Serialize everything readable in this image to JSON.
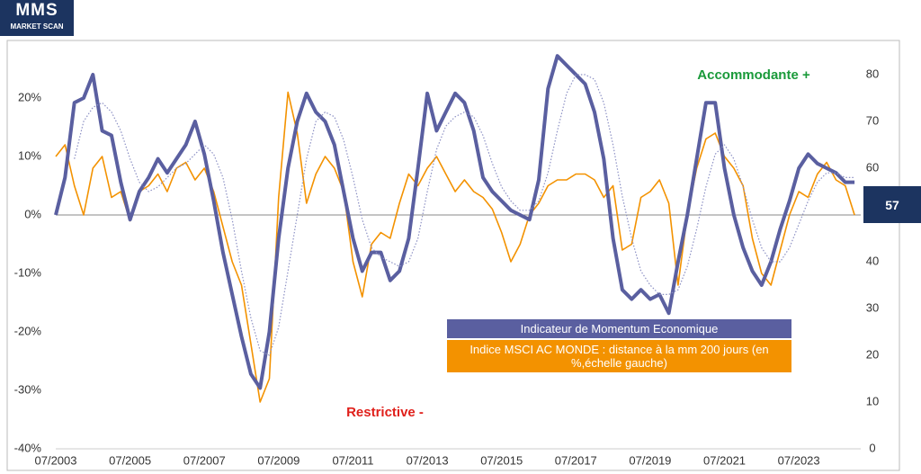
{
  "logo": {
    "title": "MMS",
    "subtitle": "MARKET SCAN"
  },
  "chart_data": {
    "type": "line",
    "annotations": [
      {
        "text": "Accommodante +",
        "color": "#1a9a3a"
      },
      {
        "text": "Restrictive -",
        "color": "#e0201b"
      }
    ],
    "x": [
      "2003-07",
      "2003-10",
      "2004-01",
      "2004-04",
      "2004-07",
      "2004-10",
      "2005-01",
      "2005-04",
      "2005-07",
      "2005-10",
      "2006-01",
      "2006-04",
      "2006-07",
      "2006-10",
      "2007-01",
      "2007-04",
      "2007-07",
      "2007-10",
      "2008-01",
      "2008-04",
      "2008-07",
      "2008-10",
      "2009-01",
      "2009-04",
      "2009-07",
      "2009-10",
      "2010-01",
      "2010-04",
      "2010-07",
      "2010-10",
      "2011-01",
      "2011-04",
      "2011-07",
      "2011-10",
      "2012-01",
      "2012-04",
      "2012-07",
      "2012-10",
      "2013-01",
      "2013-04",
      "2013-07",
      "2013-10",
      "2014-01",
      "2014-04",
      "2014-07",
      "2014-10",
      "2015-01",
      "2015-04",
      "2015-07",
      "2015-10",
      "2016-01",
      "2016-04",
      "2016-07",
      "2016-10",
      "2017-01",
      "2017-04",
      "2017-07",
      "2017-10",
      "2018-01",
      "2018-04",
      "2018-07",
      "2018-10",
      "2019-01",
      "2019-04",
      "2019-07",
      "2019-10",
      "2020-01",
      "2020-04",
      "2020-07",
      "2020-10",
      "2021-01",
      "2021-04",
      "2021-07",
      "2021-10",
      "2022-01",
      "2022-04",
      "2022-07",
      "2022-10",
      "2023-01",
      "2023-04",
      "2023-07",
      "2023-10",
      "2024-01",
      "2024-04",
      "2024-07",
      "2024-10",
      "2025-01"
    ],
    "series": [
      {
        "name": "Indice MSCI AC MONDE : distance à la mm 200 jours (en %,échelle gauche)",
        "color": "#f39200",
        "width": 1.6,
        "values": [
          10,
          12,
          5,
          0,
          8,
          10,
          3,
          4,
          -1,
          4,
          5,
          7,
          4,
          8,
          9,
          6,
          8,
          4,
          -2,
          -8,
          -12,
          -22,
          -32,
          -28,
          3,
          21,
          14,
          2,
          7,
          10,
          8,
          4,
          -8,
          -14,
          -5,
          -3,
          -4,
          2,
          7,
          5,
          8,
          10,
          7,
          4,
          6,
          4,
          3,
          1,
          -3,
          -8,
          -5,
          0,
          2,
          5,
          6,
          6,
          7,
          7,
          6,
          3,
          5,
          -6,
          -5,
          3,
          4,
          6,
          2,
          -12,
          0,
          8,
          13,
          14,
          10,
          8,
          5,
          -4,
          -10,
          -12,
          -6,
          0,
          4,
          3,
          7,
          9,
          6,
          5,
          0
        ]
      },
      {
        "name": "Indicateur de Momentum Economique",
        "color": "#5a5fa0",
        "width": 4,
        "axis": "y2",
        "values": [
          50,
          58,
          74,
          75,
          80,
          68,
          67,
          57,
          49,
          55,
          58,
          62,
          59,
          62,
          65,
          70,
          63,
          53,
          42,
          33,
          24,
          16,
          13,
          25,
          45,
          60,
          70,
          76,
          72,
          70,
          65,
          55,
          45,
          38,
          42,
          42,
          36,
          38,
          45,
          60,
          76,
          68,
          72,
          76,
          74,
          68,
          58,
          55,
          53,
          51,
          50,
          49,
          57.5,
          77,
          84,
          82,
          80,
          78,
          72,
          62,
          45,
          34,
          32,
          34,
          32,
          33,
          29,
          40,
          50,
          62,
          74,
          74,
          60,
          50,
          43,
          38,
          35,
          40,
          47,
          53,
          60,
          63,
          61,
          60,
          59,
          57,
          57
        ]
      },
      {
        "color": "#8c90c4",
        "width": 1.2,
        "line_style": "dotted",
        "axis": "y2",
        "values": [
          null,
          null,
          62,
          70,
          73,
          74,
          72,
          68,
          62,
          57,
          55,
          56,
          58,
          60,
          61,
          63,
          65,
          63,
          58,
          49,
          38,
          28,
          21,
          20,
          26,
          38,
          50,
          62,
          70,
          72,
          71,
          66,
          58,
          49,
          43,
          41,
          40,
          39,
          40,
          45,
          55,
          64,
          69,
          71,
          72,
          71,
          67,
          61,
          56,
          53,
          51,
          51,
          53,
          59,
          68,
          76,
          80,
          80,
          79,
          74,
          65,
          54,
          45,
          38,
          35,
          33,
          33,
          34,
          39,
          47,
          56,
          63,
          65,
          62,
          56,
          49,
          43,
          40,
          40,
          43,
          48,
          53,
          57,
          59,
          59,
          58,
          58
        ]
      }
    ],
    "xlim": [
      "2003-07",
      "2025-03"
    ],
    "xticks": [
      {
        "value": "2003-07",
        "label": "07/2003"
      },
      {
        "value": "2005-07",
        "label": "07/2005"
      },
      {
        "value": "2007-07",
        "label": "07/2007"
      },
      {
        "value": "2009-07",
        "label": "07/2009"
      },
      {
        "value": "2011-07",
        "label": "07/2011"
      },
      {
        "value": "2013-07",
        "label": "07/2013"
      },
      {
        "value": "2015-07",
        "label": "07/2015"
      },
      {
        "value": "2017-07",
        "label": "07/2017"
      },
      {
        "value": "2019-07",
        "label": "07/2019"
      },
      {
        "value": "2021-07",
        "label": "07/2021"
      },
      {
        "value": "2023-07",
        "label": "07/2023"
      }
    ],
    "ylim": [
      -40,
      28
    ],
    "yticks": [
      {
        "value": -40,
        "label": "-40%"
      },
      {
        "value": -30,
        "label": "-30%"
      },
      {
        "value": -20,
        "label": "-20%"
      },
      {
        "value": -10,
        "label": "-10%"
      },
      {
        "value": 0,
        "label": "0%"
      },
      {
        "value": 10,
        "label": "10%"
      },
      {
        "value": 20,
        "label": "20%"
      }
    ],
    "y2lim": [
      0,
      85
    ],
    "y2ticks": [
      0,
      10,
      20,
      30,
      40,
      50,
      60,
      70,
      80
    ],
    "zero_line": true
  }
}
